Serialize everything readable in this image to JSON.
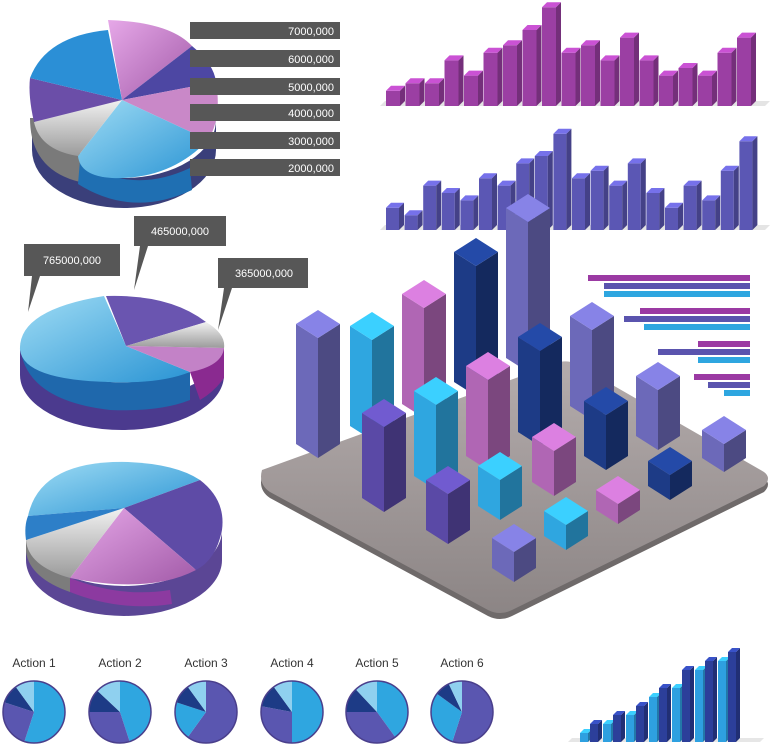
{
  "colors": {
    "purple": "#8c3a96",
    "pink": "#b569b5",
    "indigo": "#5351a7",
    "sky": "#2fa6e0",
    "navy": "#1a2f7a",
    "grey": "#9a9a9a",
    "slate": "#6a6a6a"
  },
  "chart_data": [
    {
      "type": "pie",
      "value_labels": [
        "7000,000",
        "6000,000",
        "5000,000",
        "4000,000",
        "3000,000",
        "2000,000"
      ]
    },
    {
      "type": "bar",
      "values": [
        2,
        3,
        3,
        6,
        4,
        7,
        8,
        10,
        13,
        7,
        8,
        6,
        9,
        6,
        4,
        5,
        4,
        7,
        9
      ]
    },
    {
      "type": "bar",
      "values": [
        3,
        2,
        6,
        5,
        4,
        7,
        6,
        9,
        10,
        13,
        7,
        8,
        6,
        9,
        5,
        3,
        6,
        4,
        8,
        12
      ]
    },
    {
      "type": "pie",
      "value_labels": [
        "765000,000",
        "465000,000",
        "365000,000"
      ],
      "values": [
        765000000,
        465000000,
        365000000
      ]
    },
    {
      "type": "pie"
    },
    {
      "type": "bar"
    },
    {
      "type": "bar"
    },
    {
      "type": "pie",
      "labels": [
        "Action 1",
        "Action 2",
        "Action 3",
        "Action 4",
        "Action 5",
        "Action 6"
      ]
    },
    {
      "type": "bar",
      "values": [
        [
          1,
          2
        ],
        [
          2,
          3
        ],
        [
          3,
          4
        ],
        [
          5,
          6
        ],
        [
          6,
          8
        ],
        [
          8,
          9
        ],
        [
          9,
          10
        ]
      ]
    }
  ]
}
